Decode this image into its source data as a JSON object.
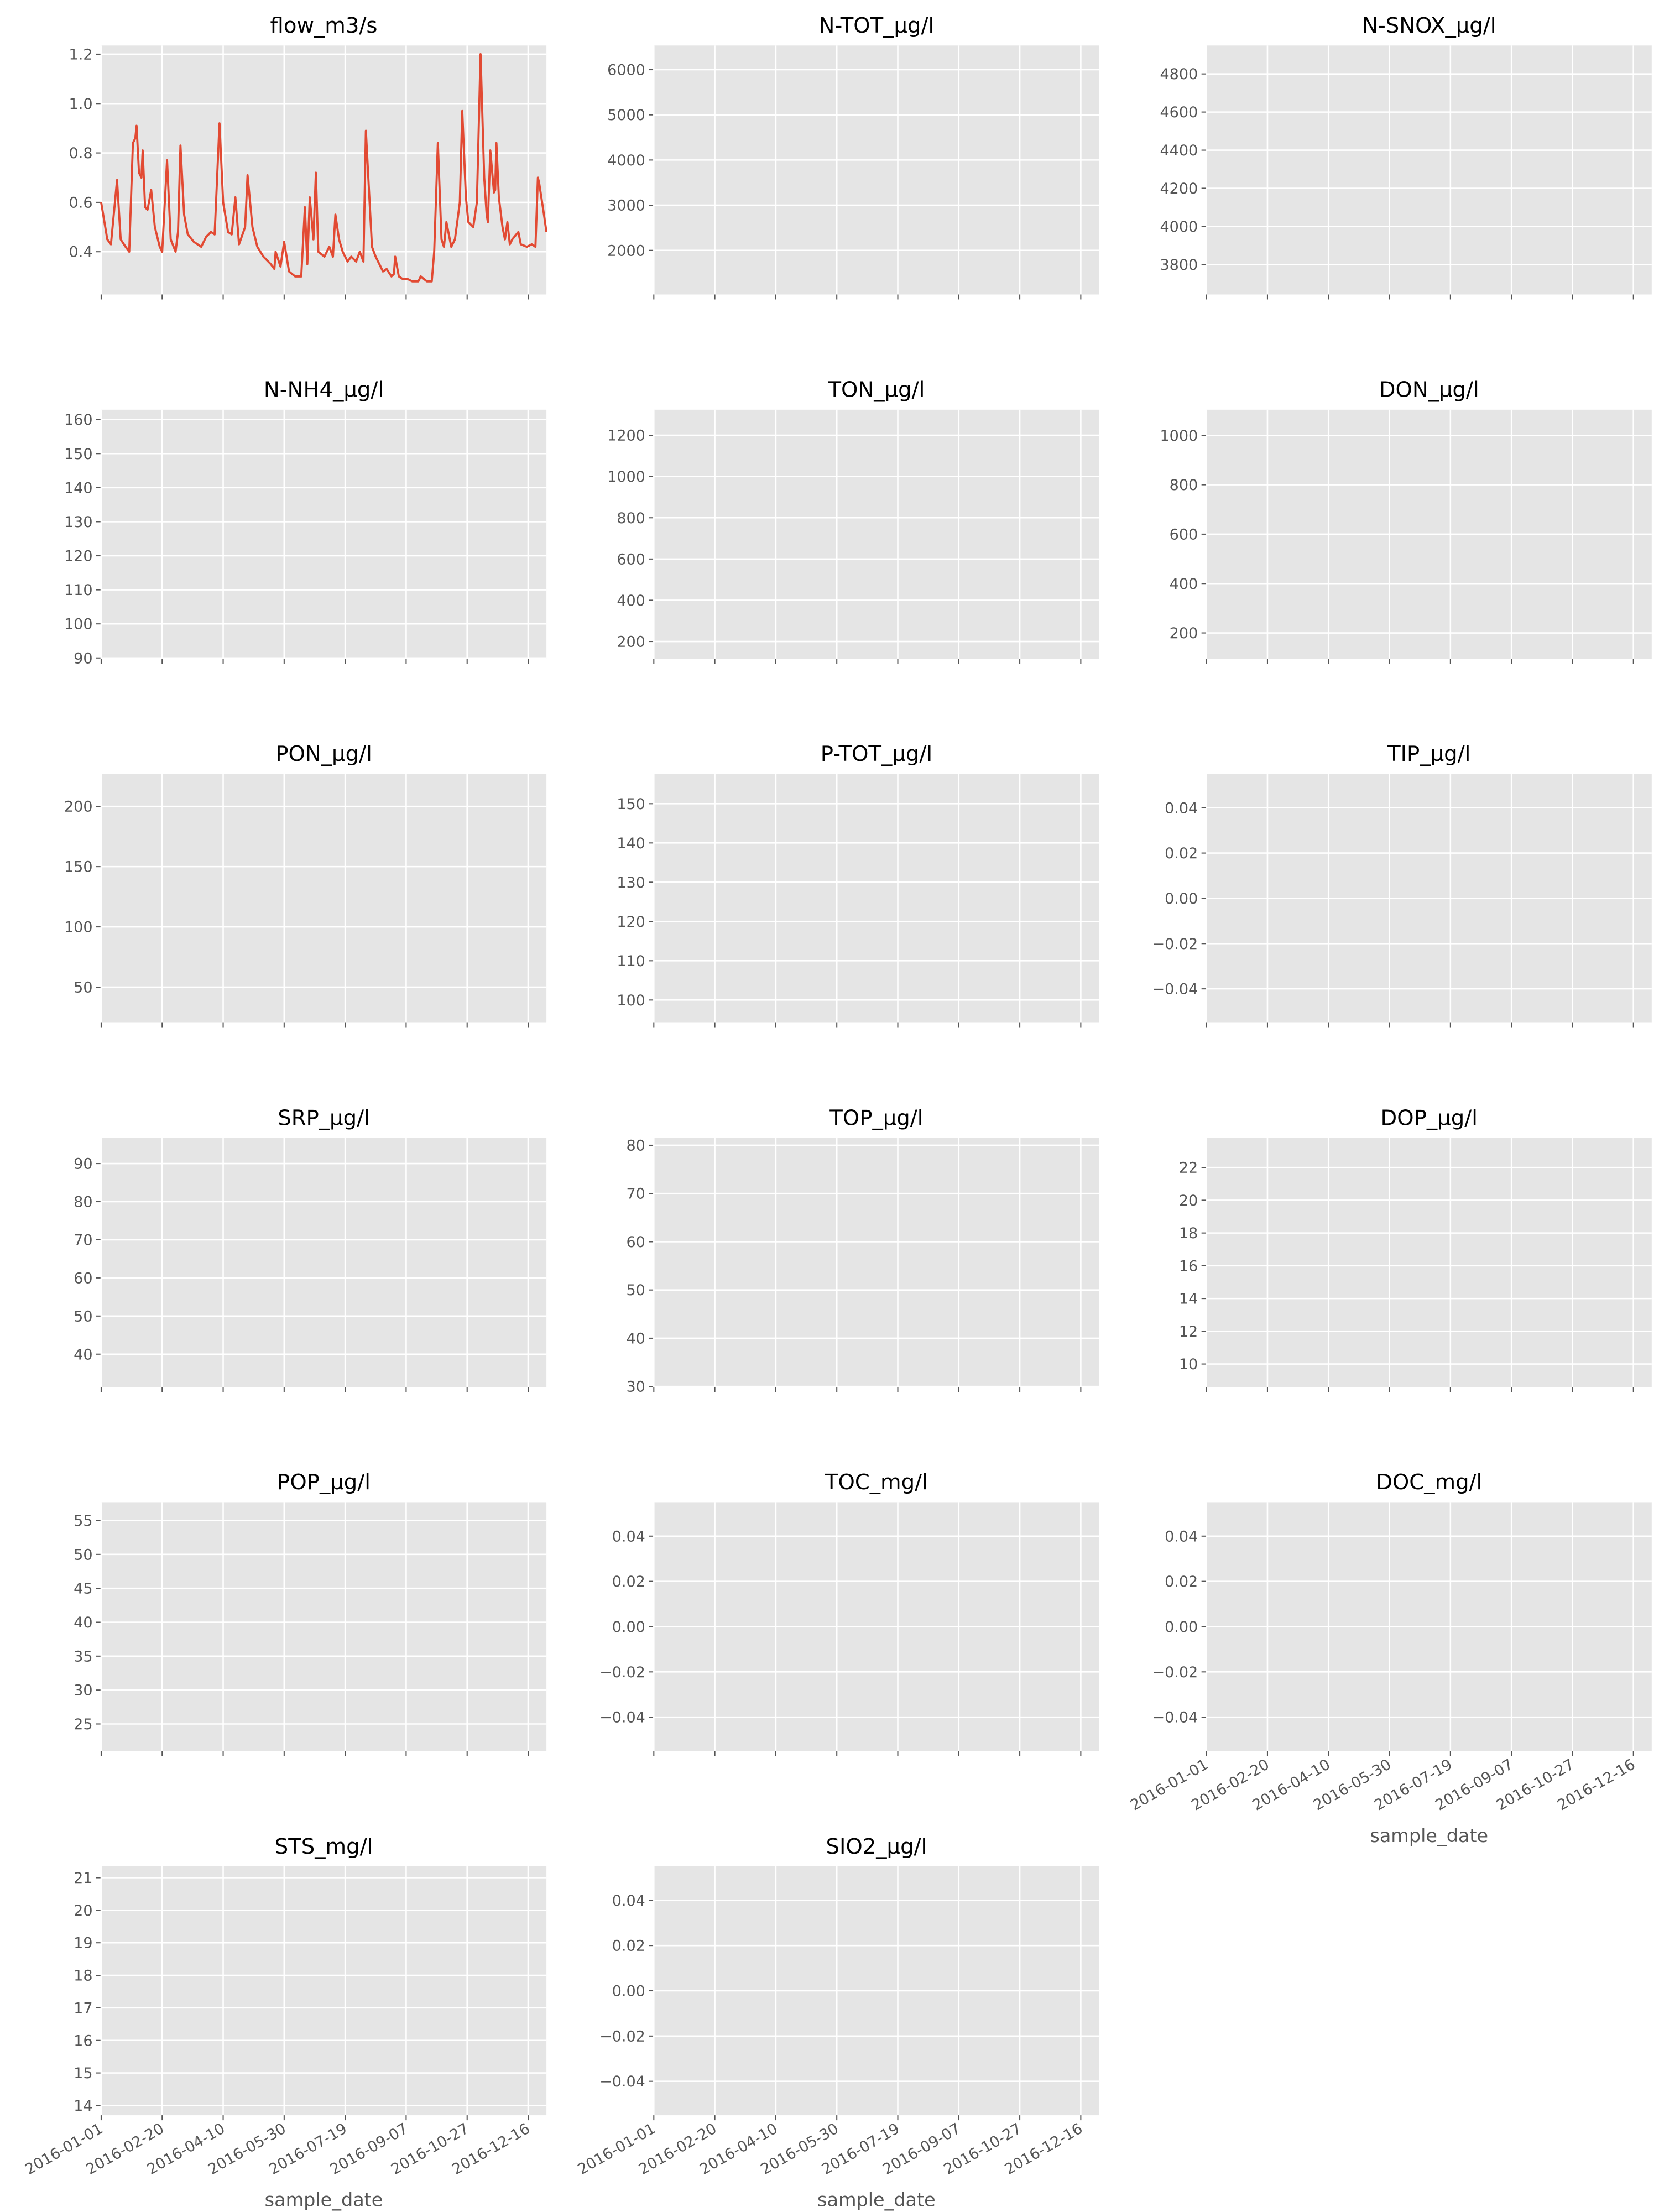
{
  "chart_data": [
    {
      "type": "line",
      "title": "flow_m3/s",
      "xlim": [
        "2016-01-01",
        "2016-12-31"
      ],
      "xticks": [
        "2016-01-01",
        "2016-02-20",
        "2016-04-10",
        "2016-05-30",
        "2016-07-19",
        "2016-09-07",
        "2016-10-27",
        "2016-12-16"
      ],
      "ylim": [
        0.227,
        1.235
      ],
      "yticks": [
        0.4,
        0.6,
        0.8,
        {
          "value": 1,
          "label": "1.0"
        },
        1.2
      ],
      "grid": true,
      "x": [
        "2016-01-01",
        "2016-01-06",
        "2016-01-09",
        "2016-01-14",
        "2016-01-17",
        "2016-01-21",
        "2016-01-24",
        "2016-01-27",
        "2016-01-29",
        "2016-01-30",
        "2016-02-01",
        "2016-02-03",
        "2016-02-04",
        "2016-02-06",
        "2016-02-08",
        "2016-02-11",
        "2016-02-14",
        "2016-02-18",
        "2016-02-20",
        "2016-02-24",
        "2016-02-27",
        "2016-03-02",
        "2016-03-04",
        "2016-03-06",
        "2016-03-09",
        "2016-03-12",
        "2016-03-17",
        "2016-03-23",
        "2016-03-27",
        "2016-03-31",
        "2016-04-03",
        "2016-04-07",
        "2016-04-10",
        "2016-04-14",
        "2016-04-17",
        "2016-04-20",
        "2016-04-23",
        "2016-04-28",
        "2016-04-30",
        "2016-05-04",
        "2016-05-08",
        "2016-05-13",
        "2016-05-19",
        "2016-05-22",
        "2016-05-23",
        "2016-05-27",
        "2016-05-30",
        "2016-06-03",
        "2016-06-08",
        "2016-06-13",
        "2016-06-16",
        "2016-06-18",
        "2016-06-20",
        "2016-06-23",
        "2016-06-25",
        "2016-06-27",
        "2016-07-02",
        "2016-07-06",
        "2016-07-09",
        "2016-07-11",
        "2016-07-14",
        "2016-07-17",
        "2016-07-21",
        "2016-07-24",
        "2016-07-28",
        "2016-07-31",
        "2016-08-03",
        "2016-08-05",
        "2016-08-07",
        "2016-08-10",
        "2016-08-13",
        "2016-08-15",
        "2016-08-19",
        "2016-08-22",
        "2016-08-26",
        "2016-08-28",
        "2016-08-29",
        "2016-09-01",
        "2016-09-04",
        "2016-09-08",
        "2016-09-12",
        "2016-09-17",
        "2016-09-19",
        "2016-09-24",
        "2016-09-28",
        "2016-09-30",
        "2016-10-03",
        "2016-10-06",
        "2016-10-08",
        "2016-10-10",
        "2016-10-14",
        "2016-10-17",
        "2016-10-21",
        "2016-10-23",
        "2016-10-26",
        "2016-10-28",
        "2016-11-01",
        "2016-11-04",
        "2016-11-07",
        "2016-11-10",
        "2016-11-12",
        "2016-11-13",
        "2016-11-15",
        "2016-11-18",
        "2016-11-19",
        "2016-11-20",
        "2016-11-22",
        "2016-11-25",
        "2016-11-27",
        "2016-11-29",
        "2016-12-01",
        "2016-12-03",
        "2016-12-08",
        "2016-12-10",
        "2016-12-15",
        "2016-12-19",
        "2016-12-22",
        "2016-12-24",
        "2016-12-25",
        "2016-12-29",
        "2016-12-31"
      ],
      "series": [
        {
          "color": "#e24a33",
          "values": [
            0.6,
            0.45,
            0.43,
            0.69,
            0.45,
            0.42,
            0.4,
            0.84,
            0.86,
            0.91,
            0.72,
            0.7,
            0.81,
            0.58,
            0.57,
            0.65,
            0.5,
            0.42,
            0.4,
            0.77,
            0.45,
            0.4,
            0.48,
            0.83,
            0.55,
            0.47,
            0.44,
            0.42,
            0.46,
            0.48,
            0.47,
            0.92,
            0.6,
            0.48,
            0.47,
            0.62,
            0.43,
            0.5,
            0.71,
            0.5,
            0.42,
            0.38,
            0.35,
            0.33,
            0.4,
            0.34,
            0.44,
            0.32,
            0.3,
            0.3,
            0.58,
            0.35,
            0.62,
            0.45,
            0.72,
            0.4,
            0.38,
            0.42,
            0.38,
            0.55,
            0.45,
            0.4,
            0.36,
            0.38,
            0.36,
            0.4,
            0.36,
            0.89,
            0.7,
            0.42,
            0.38,
            0.36,
            0.32,
            0.33,
            0.3,
            0.31,
            0.38,
            0.3,
            0.29,
            0.29,
            0.28,
            0.28,
            0.3,
            0.28,
            0.28,
            0.4,
            0.84,
            0.45,
            0.42,
            0.52,
            0.42,
            0.45,
            0.6,
            0.97,
            0.62,
            0.52,
            0.5,
            0.6,
            1.2,
            0.7,
            0.55,
            0.52,
            0.81,
            0.64,
            0.65,
            0.84,
            0.62,
            0.5,
            0.45,
            0.52,
            0.43,
            0.45,
            0.48,
            0.43,
            0.42,
            0.43,
            0.42,
            0.7,
            0.68,
            0.55,
            0.48
          ]
        }
      ]
    },
    {
      "type": "line",
      "title": "N-TOT_µg/l",
      "xlim": [
        "2016-01-01",
        "2016-12-31"
      ],
      "xticks": [
        "2016-01-01",
        "2016-02-20",
        "2016-04-10",
        "2016-05-30",
        "2016-07-19",
        "2016-09-07",
        "2016-10-27",
        "2016-12-16"
      ],
      "ylim": [
        1024,
        6535
      ],
      "yticks": [
        2000,
        3000,
        4000,
        5000,
        6000
      ],
      "grid": true
    },
    {
      "type": "line",
      "title": "N-SNOX_µg/l",
      "xlim": [
        "2016-01-01",
        "2016-12-31"
      ],
      "xticks": [
        "2016-01-01",
        "2016-02-20",
        "2016-04-10",
        "2016-05-30",
        "2016-07-19",
        "2016-09-07",
        "2016-10-27",
        "2016-12-16"
      ],
      "ylim": [
        3643,
        4949
      ],
      "yticks": [
        3800,
        4000,
        4200,
        4400,
        4600,
        4800
      ],
      "grid": true
    },
    {
      "type": "line",
      "title": "N-NH4_µg/l",
      "xlim": [
        "2016-01-01",
        "2016-12-31"
      ],
      "xticks": [
        "2016-01-01",
        "2016-02-20",
        "2016-04-10",
        "2016-05-30",
        "2016-07-19",
        "2016-09-07",
        "2016-10-27",
        "2016-12-16"
      ],
      "ylim": [
        89.8,
        162.9
      ],
      "yticks": [
        90,
        100,
        110,
        120,
        130,
        140,
        150,
        160
      ],
      "grid": true
    },
    {
      "type": "line",
      "title": "TON_µg/l",
      "xlim": [
        "2016-01-01",
        "2016-12-31"
      ],
      "xticks": [
        "2016-01-01",
        "2016-02-20",
        "2016-04-10",
        "2016-05-30",
        "2016-07-19",
        "2016-09-07",
        "2016-10-27",
        "2016-12-16"
      ],
      "ylim": [
        117,
        1324
      ],
      "yticks": [
        200,
        400,
        600,
        800,
        1000,
        1200
      ],
      "grid": true
    },
    {
      "type": "line",
      "title": "DON_µg/l",
      "xlim": [
        "2016-01-01",
        "2016-12-31"
      ],
      "xticks": [
        "2016-01-01",
        "2016-02-20",
        "2016-04-10",
        "2016-05-30",
        "2016-07-19",
        "2016-09-07",
        "2016-10-27",
        "2016-12-16"
      ],
      "ylim": [
        96,
        1104
      ],
      "yticks": [
        200,
        400,
        600,
        800,
        1000
      ],
      "grid": true
    },
    {
      "type": "line",
      "title": "PON_µg/l",
      "xlim": [
        "2016-01-01",
        "2016-12-31"
      ],
      "xticks": [
        "2016-01-01",
        "2016-02-20",
        "2016-04-10",
        "2016-05-30",
        "2016-07-19",
        "2016-09-07",
        "2016-10-27",
        "2016-12-16"
      ],
      "ylim": [
        20.4,
        227
      ],
      "yticks": [
        50,
        100,
        150,
        200
      ],
      "grid": true
    },
    {
      "type": "line",
      "title": "P-TOT_µg/l",
      "xlim": [
        "2016-01-01",
        "2016-12-31"
      ],
      "xticks": [
        "2016-01-01",
        "2016-02-20",
        "2016-04-10",
        "2016-05-30",
        "2016-07-19",
        "2016-09-07",
        "2016-10-27",
        "2016-12-16"
      ],
      "ylim": [
        94.2,
        157.6
      ],
      "yticks": [
        100,
        110,
        120,
        130,
        140,
        150
      ],
      "grid": true
    },
    {
      "type": "line",
      "title": "TIP_µg/l",
      "xlim": [
        "2016-01-01",
        "2016-12-31"
      ],
      "xticks": [
        "2016-01-01",
        "2016-02-20",
        "2016-04-10",
        "2016-05-30",
        "2016-07-19",
        "2016-09-07",
        "2016-10-27",
        "2016-12-16"
      ],
      "ylim": [
        -0.055,
        0.055
      ],
      "yticks": [
        {
          "value": -0.04,
          "label": "−0.04"
        },
        {
          "value": -0.02,
          "label": "−0.02"
        },
        {
          "value": 0,
          "label": "0.00"
        },
        0.02,
        0.04
      ],
      "grid": true
    },
    {
      "type": "line",
      "title": "SRP_µg/l",
      "xlim": [
        "2016-01-01",
        "2016-12-31"
      ],
      "xticks": [
        "2016-01-01",
        "2016-02-20",
        "2016-04-10",
        "2016-05-30",
        "2016-07-19",
        "2016-09-07",
        "2016-10-27",
        "2016-12-16"
      ],
      "ylim": [
        31.4,
        96.7
      ],
      "yticks": [
        40,
        50,
        60,
        70,
        80,
        90
      ],
      "grid": true
    },
    {
      "type": "line",
      "title": "TOP_µg/l",
      "xlim": [
        "2016-01-01",
        "2016-12-31"
      ],
      "xticks": [
        "2016-01-01",
        "2016-02-20",
        "2016-04-10",
        "2016-05-30",
        "2016-07-19",
        "2016-09-07",
        "2016-10-27",
        "2016-12-16"
      ],
      "ylim": [
        29.9,
        81.5
      ],
      "yticks": [
        30,
        40,
        50,
        60,
        70,
        80
      ],
      "grid": true
    },
    {
      "type": "line",
      "title": "DOP_µg/l",
      "xlim": [
        "2016-01-01",
        "2016-12-31"
      ],
      "xticks": [
        "2016-01-01",
        "2016-02-20",
        "2016-04-10",
        "2016-05-30",
        "2016-07-19",
        "2016-09-07",
        "2016-10-27",
        "2016-12-16"
      ],
      "ylim": [
        8.6,
        23.8
      ],
      "yticks": [
        10,
        12,
        14,
        16,
        18,
        20,
        22
      ],
      "grid": true
    },
    {
      "type": "line",
      "title": "POP_µg/l",
      "xlim": [
        "2016-01-01",
        "2016-12-31"
      ],
      "xticks": [
        "2016-01-01",
        "2016-02-20",
        "2016-04-10",
        "2016-05-30",
        "2016-07-19",
        "2016-09-07",
        "2016-10-27",
        "2016-12-16"
      ],
      "ylim": [
        21,
        57.7
      ],
      "yticks": [
        25,
        30,
        35,
        40,
        45,
        50,
        55
      ],
      "grid": true
    },
    {
      "type": "line",
      "title": "TOC_mg/l",
      "xlim": [
        "2016-01-01",
        "2016-12-31"
      ],
      "xticks": [
        "2016-01-01",
        "2016-02-20",
        "2016-04-10",
        "2016-05-30",
        "2016-07-19",
        "2016-09-07",
        "2016-10-27",
        "2016-12-16"
      ],
      "ylim": [
        -0.055,
        0.055
      ],
      "yticks": [
        {
          "value": -0.04,
          "label": "−0.04"
        },
        {
          "value": -0.02,
          "label": "−0.02"
        },
        {
          "value": 0,
          "label": "0.00"
        },
        0.02,
        0.04
      ],
      "grid": true
    },
    {
      "type": "line",
      "title": "DOC_mg/l",
      "xlim": [
        "2016-01-01",
        "2016-12-31"
      ],
      "xticks": [
        "2016-01-01",
        "2016-02-20",
        "2016-04-10",
        "2016-05-30",
        "2016-07-19",
        "2016-09-07",
        "2016-10-27",
        "2016-12-16"
      ],
      "xlabel": "sample_date",
      "ylim": [
        -0.055,
        0.055
      ],
      "yticks": [
        {
          "value": -0.04,
          "label": "−0.04"
        },
        {
          "value": -0.02,
          "label": "−0.02"
        },
        {
          "value": 0,
          "label": "0.00"
        },
        0.02,
        0.04
      ],
      "grid": true
    },
    {
      "type": "line",
      "title": "STS_mg/l",
      "xlim": [
        "2016-01-01",
        "2016-12-31"
      ],
      "xticks": [
        "2016-01-01",
        "2016-02-20",
        "2016-04-10",
        "2016-05-30",
        "2016-07-19",
        "2016-09-07",
        "2016-10-27",
        "2016-12-16"
      ],
      "xlabel": "sample_date",
      "ylim": [
        13.7,
        21.35
      ],
      "yticks": [
        14,
        15,
        16,
        17,
        18,
        19,
        20,
        21
      ],
      "grid": true
    },
    {
      "type": "line",
      "title": "SIO2_µg/l",
      "xlim": [
        "2016-01-01",
        "2016-12-31"
      ],
      "xticks": [
        "2016-01-01",
        "2016-02-20",
        "2016-04-10",
        "2016-05-30",
        "2016-07-19",
        "2016-09-07",
        "2016-10-27",
        "2016-12-16"
      ],
      "xlabel": "sample_date",
      "ylim": [
        -0.055,
        0.055
      ],
      "yticks": [
        {
          "value": -0.04,
          "label": "−0.04"
        },
        {
          "value": -0.02,
          "label": "−0.02"
        },
        {
          "value": 0,
          "label": "0.00"
        },
        0.02,
        0.04
      ],
      "grid": true
    }
  ]
}
